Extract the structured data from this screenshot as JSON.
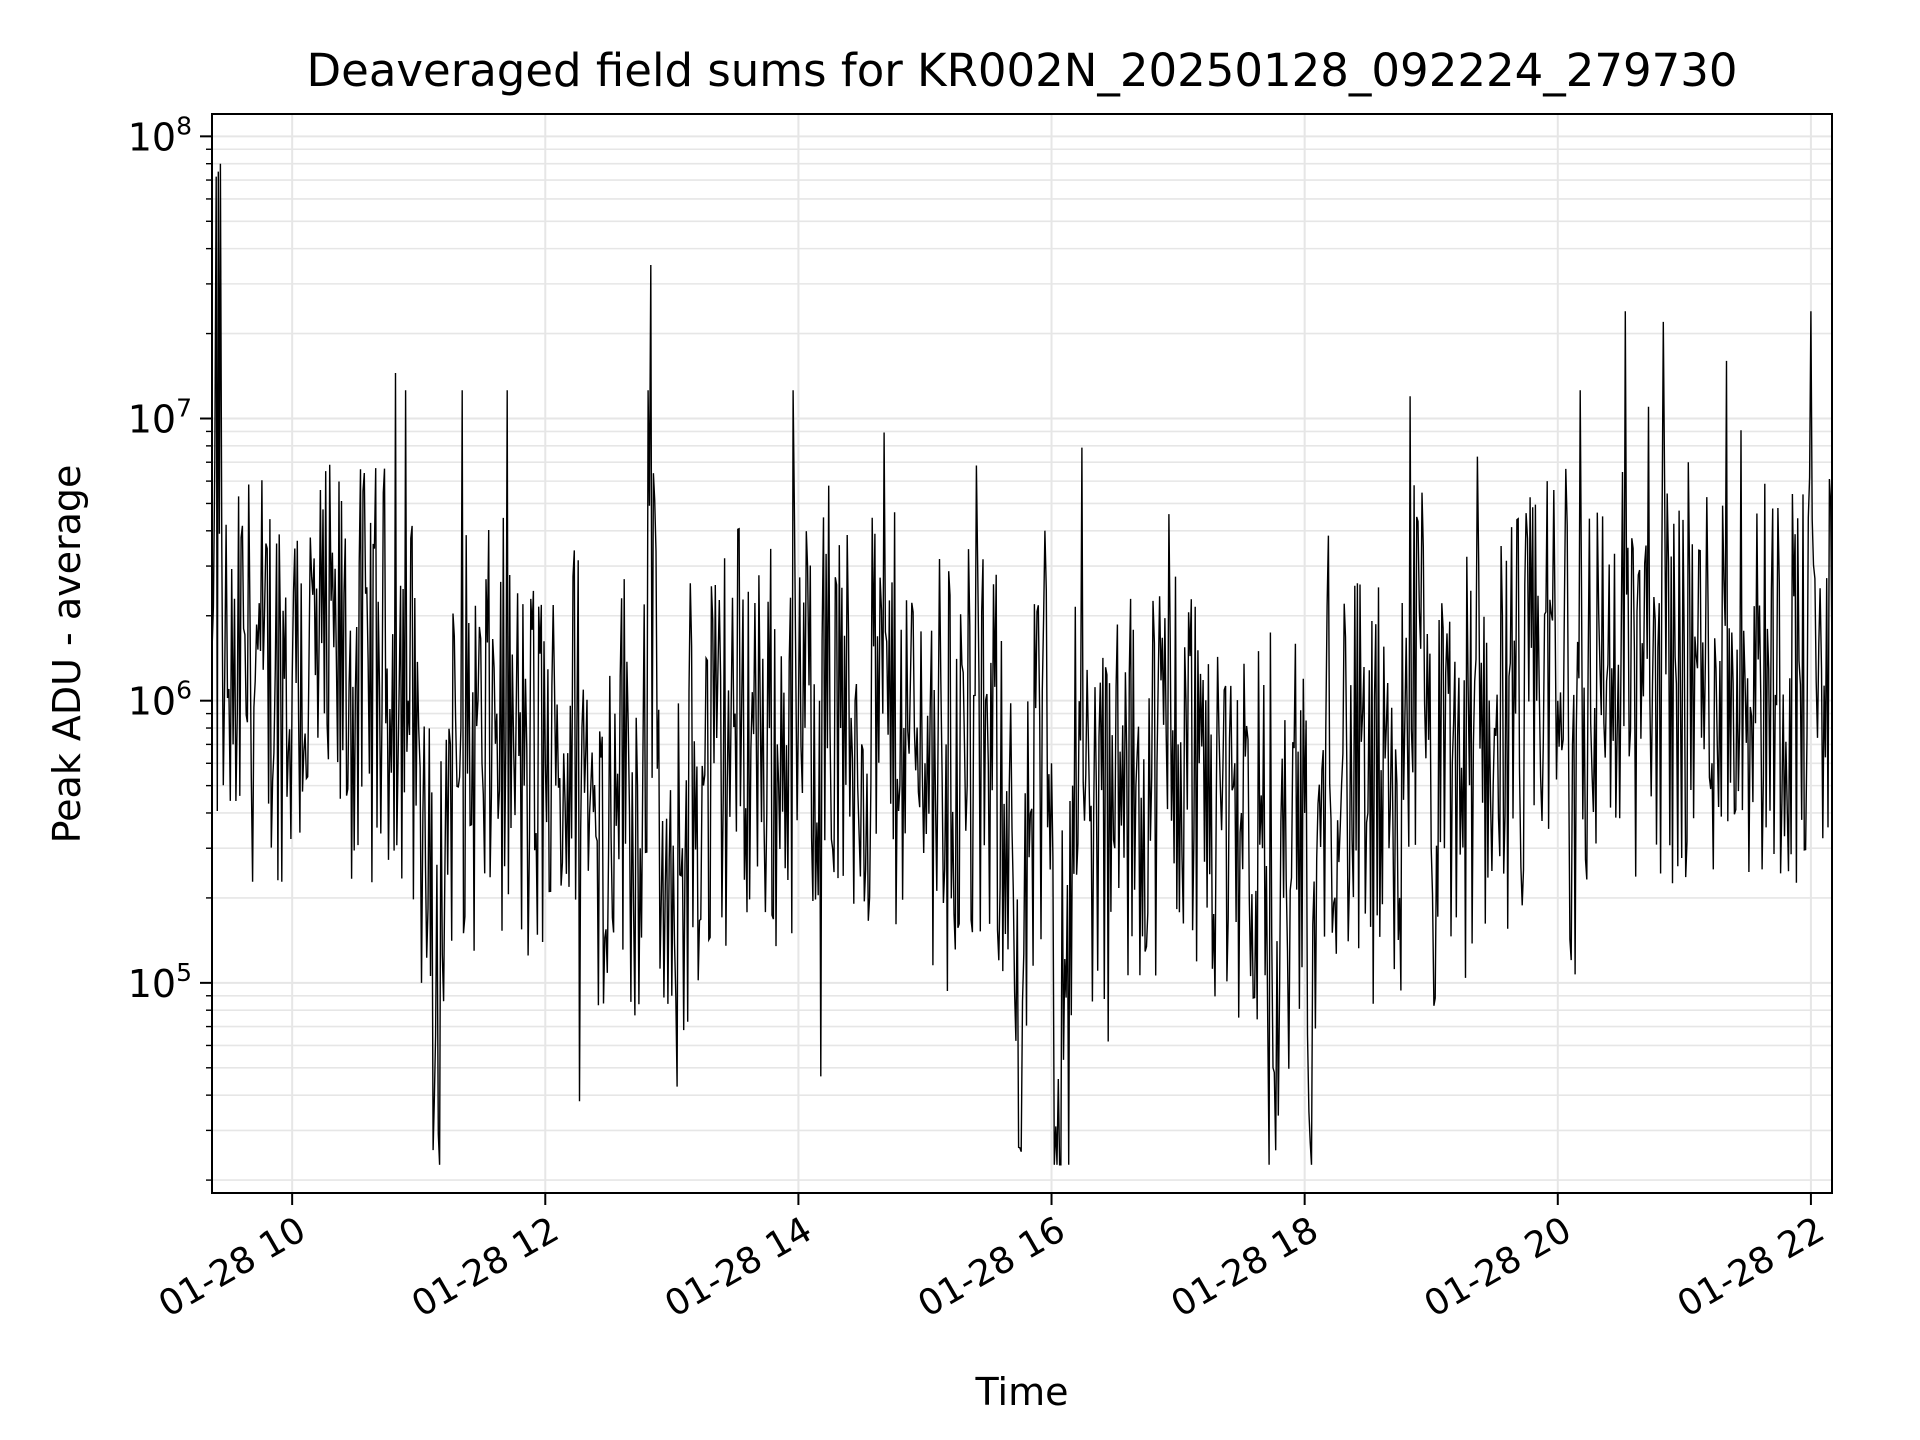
{
  "chart_data": {
    "type": "line",
    "title": "Deaveraged field sums for KR002N_20250128_092224_279730",
    "xlabel": "Time",
    "ylabel": "Peak ADU - average",
    "y_scale": "log",
    "grid": "on (major and minor)",
    "line_color": "#000000",
    "grid_color": "#e6e6e6",
    "x_range": [
      "2025-01-28 09:22",
      "2025-01-28 22:10"
    ],
    "ylim": [
      18000,
      120000000
    ],
    "x_ticks": [
      {
        "value": "2025-01-28 10:00",
        "label": "01-28 10"
      },
      {
        "value": "2025-01-28 12:00",
        "label": "01-28 12"
      },
      {
        "value": "2025-01-28 14:00",
        "label": "01-28 14"
      },
      {
        "value": "2025-01-28 16:00",
        "label": "01-28 16"
      },
      {
        "value": "2025-01-28 18:00",
        "label": "01-28 18"
      },
      {
        "value": "2025-01-28 20:00",
        "label": "01-28 20"
      },
      {
        "value": "2025-01-28 22:00",
        "label": "01-28 22"
      }
    ],
    "y_ticks": [
      {
        "value": 100000,
        "base": "10",
        "exp": "5"
      },
      {
        "value": 1000000,
        "base": "10",
        "exp": "6"
      },
      {
        "value": 10000000,
        "base": "10",
        "exp": "7"
      },
      {
        "value": 100000000,
        "base": "10",
        "exp": "8"
      }
    ],
    "series": [
      {
        "x": [
          "2025-01-28 09:22",
          "2025-01-28 09:24",
          "2025-01-28 09:25",
          "2025-01-28 09:26",
          "2025-01-28 09:28",
          "2025-01-28 09:30",
          "2025-01-28 09:32",
          "2025-01-28 09:34",
          "2025-01-28 09:37",
          "2025-01-28 09:40",
          "2025-01-28 09:45",
          "2025-01-28 09:52",
          "2025-01-28 10:00",
          "2025-01-28 10:08",
          "2025-01-28 10:14",
          "2025-01-28 10:21",
          "2025-01-28 10:30",
          "2025-01-28 10:36",
          "2025-01-28 10:45",
          "2025-01-28 10:49",
          "2025-01-28 10:55",
          "2025-01-28 11:00",
          "2025-01-28 11:02",
          "2025-01-28 11:08",
          "2025-01-28 11:15",
          "2025-01-28 11:20",
          "2025-01-28 11:30",
          "2025-01-28 11:37",
          "2025-01-28 11:45",
          "2025-01-28 11:50",
          "2025-01-28 12:00",
          "2025-01-28 12:05",
          "2025-01-28 12:15",
          "2025-01-28 12:21",
          "2025-01-28 12:30",
          "2025-01-28 12:33",
          "2025-01-28 12:45",
          "2025-01-28 12:50",
          "2025-01-28 12:55",
          "2025-01-28 13:00",
          "2025-01-28 13:05",
          "2025-01-28 13:15",
          "2025-01-28 13:20",
          "2025-01-28 13:30",
          "2025-01-28 13:40",
          "2025-01-28 13:50",
          "2025-01-28 14:00",
          "2025-01-28 14:10",
          "2025-01-28 14:20",
          "2025-01-28 14:30",
          "2025-01-28 14:40",
          "2025-01-28 14:50",
          "2025-01-28 15:00",
          "2025-01-28 15:10",
          "2025-01-28 15:20",
          "2025-01-28 15:30",
          "2025-01-28 15:40",
          "2025-01-28 15:45",
          "2025-01-28 15:50",
          "2025-01-28 16:00",
          "2025-01-28 16:02",
          "2025-01-28 16:10",
          "2025-01-28 16:20",
          "2025-01-28 16:30",
          "2025-01-28 16:40",
          "2025-01-28 16:50",
          "2025-01-28 17:00",
          "2025-01-28 17:10",
          "2025-01-28 17:20",
          "2025-01-28 17:30",
          "2025-01-28 17:40",
          "2025-01-28 17:45",
          "2025-01-28 17:50",
          "2025-01-28 18:00",
          "2025-01-28 18:02",
          "2025-01-28 18:10",
          "2025-01-28 18:20",
          "2025-01-28 18:30",
          "2025-01-28 18:40",
          "2025-01-28 18:45",
          "2025-01-28 18:50",
          "2025-01-28 19:00",
          "2025-01-28 19:10",
          "2025-01-28 19:20",
          "2025-01-28 19:30",
          "2025-01-28 19:40",
          "2025-01-28 19:50",
          "2025-01-28 19:55",
          "2025-01-28 20:00",
          "2025-01-28 20:07",
          "2025-01-28 20:10",
          "2025-01-28 20:20",
          "2025-01-28 20:30",
          "2025-01-28 20:32",
          "2025-01-28 20:40",
          "2025-01-28 20:43",
          "2025-01-28 20:50",
          "2025-01-28 21:00",
          "2025-01-28 21:10",
          "2025-01-28 21:15",
          "2025-01-28 21:20",
          "2025-01-28 21:30",
          "2025-01-28 21:35",
          "2025-01-28 21:40",
          "2025-01-28 21:50",
          "2025-01-28 22:00",
          "2025-01-28 22:05",
          "2025-01-28 22:10"
        ],
        "y": [
          1500000,
          72000000,
          75000000,
          80000000,
          1200000,
          1100000,
          700000,
          900000,
          1800000,
          2000000,
          1500000,
          1300000,
          1200000,
          1400000,
          1600000,
          1300000,
          1100000,
          1400000,
          1300000,
          14500000,
          1000000,
          800000,
          400000,
          65000,
          700000,
          800000,
          600000,
          900000,
          700000,
          500000,
          600000,
          500000,
          800000,
          400000,
          300000,
          900000,
          300000,
          35000000,
          200000,
          90000,
          300000,
          500000,
          600000,
          900000,
          800000,
          700000,
          900000,
          1000000,
          800000,
          700000,
          900000,
          800000,
          600000,
          700000,
          500000,
          600000,
          500000,
          26000,
          400000,
          600000,
          31000,
          500000,
          400000,
          300000,
          500000,
          600000,
          700000,
          600000,
          500000,
          400000,
          300000,
          50000,
          200000,
          400000,
          35000,
          800000,
          600000,
          400000,
          300000,
          200000,
          12000000,
          300000,
          600000,
          700000,
          800000,
          900000,
          1000000,
          6000000,
          1000000,
          700000,
          1200000,
          1300000,
          1500000,
          24000000,
          1600000,
          11000000,
          22000000,
          1500000,
          1400000,
          1300000,
          16000000,
          1200000,
          1400000,
          1300000,
          1200000,
          24000000,
          1300000,
          1400000
        ]
      }
    ]
  }
}
